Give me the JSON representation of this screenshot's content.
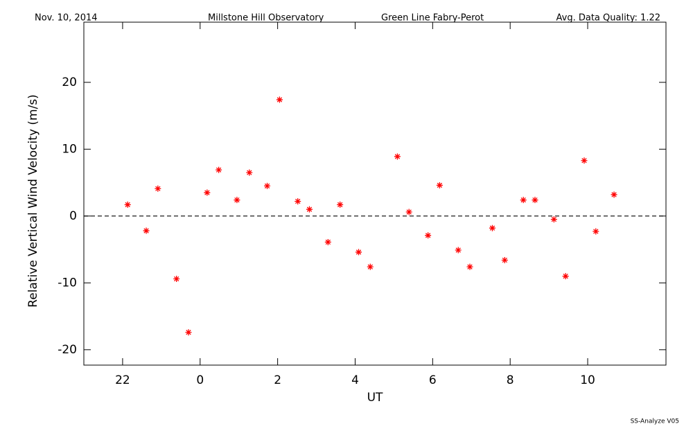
{
  "chart_data": {
    "type": "scatter",
    "header": [
      "Nov. 10, 2014",
      "Millstone Hill Observatory",
      "Green Line Fabry-Perot",
      "Avg. Data Quality: 1.22"
    ],
    "footer": "SS-Analyze V05",
    "x_label": "UT",
    "y_label": "Relative Vertical Wind Velocity (m/s)",
    "xlim": [
      21,
      36.02
    ],
    "ylim": [
      -22.3,
      29
    ],
    "xticks": [
      22,
      {
        "value": 24,
        "label": "0"
      },
      {
        "value": 26,
        "label": "2"
      },
      {
        "value": 28,
        "label": "4"
      },
      {
        "value": 30,
        "label": "6"
      },
      {
        "value": 32,
        "label": "8"
      },
      {
        "value": 34,
        "label": "10"
      }
    ],
    "yticks": [
      -20,
      -10,
      0,
      10,
      20
    ],
    "reference_line": 0,
    "color": "#ff0000",
    "x": [
      22.13,
      22.61,
      22.91,
      23.39,
      23.7,
      24.18,
      24.48,
      24.95,
      25.27,
      25.73,
      26.05,
      26.52,
      26.82,
      27.3,
      27.61,
      28.09,
      28.39,
      29.09,
      29.39,
      29.88,
      30.18,
      30.66,
      30.96,
      31.54,
      31.86,
      32.34,
      32.64,
      33.13,
      33.43,
      33.91,
      34.21,
      34.68
    ],
    "values": [
      1.7,
      -2.2,
      4.1,
      -9.4,
      -17.4,
      3.5,
      6.9,
      2.4,
      6.5,
      4.5,
      17.4,
      2.2,
      1.0,
      -3.9,
      1.7,
      -5.4,
      -7.6,
      8.9,
      0.6,
      -2.9,
      4.6,
      -5.1,
      -7.6,
      -1.8,
      -6.6,
      2.4,
      2.4,
      -0.5,
      -9.0,
      8.3,
      -2.3,
      3.2
    ]
  }
}
